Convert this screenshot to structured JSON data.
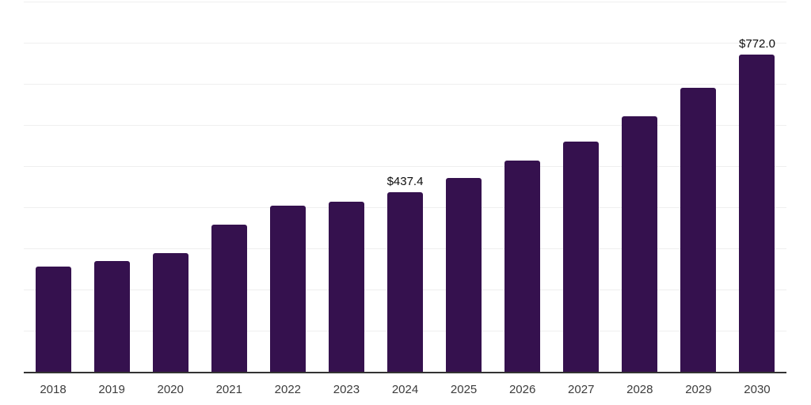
{
  "chart_data": {
    "type": "bar",
    "title": "",
    "xlabel": "",
    "ylabel": "",
    "categories": [
      "2018",
      "2019",
      "2020",
      "2021",
      "2022",
      "2023",
      "2024",
      "2025",
      "2026",
      "2027",
      "2028",
      "2029",
      "2030"
    ],
    "values": [
      256,
      270,
      289,
      358,
      404,
      414,
      437.4,
      472,
      514,
      560,
      621,
      690,
      772
    ],
    "data_labels": {
      "2024": "$437.4",
      "2030": "$772.0"
    },
    "ylim": [
      0,
      904
    ],
    "gridline_step": 100,
    "grid": "horizontal",
    "legend_position": "none",
    "colors": {
      "bar_fill": "#35114E",
      "axis_line": "#333333",
      "gridline": "#efefef",
      "tick_label": "#3c3c3c",
      "data_label": "#0d0d0d",
      "background": "#ffffff"
    }
  }
}
